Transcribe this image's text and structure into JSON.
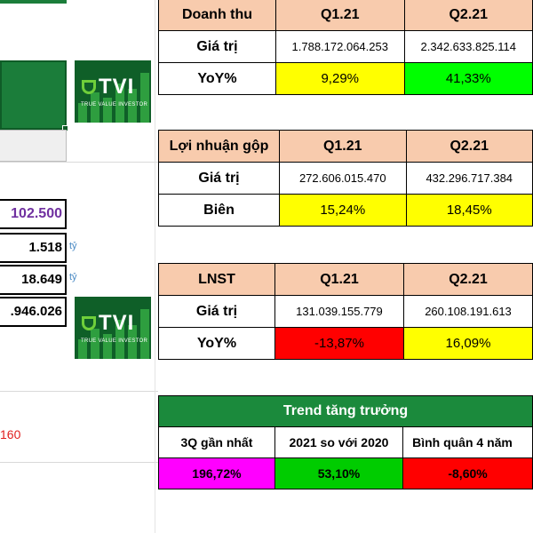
{
  "left": {
    "values": [
      "102.500",
      "1.518",
      "18.649",
      ".946.026"
    ],
    "units": [
      "tỷ",
      "tỷ"
    ],
    "red_number": "160"
  },
  "logo": {
    "text": "TVI",
    "tagline": "TRUE VALUE INVESTOR"
  },
  "revenue": {
    "header": [
      "Doanh thu",
      "Q1.21",
      "Q2.21"
    ],
    "rows": [
      {
        "label": "Giá trị",
        "q1": "1.788.172.064.253",
        "q2": "2.342.633.825.114"
      },
      {
        "label": "YoY%",
        "q1": "9,29%",
        "q2": "41,33%"
      }
    ]
  },
  "gross_profit": {
    "header": [
      "Lợi nhuận gộp",
      "Q1.21",
      "Q2.21"
    ],
    "rows": [
      {
        "label": "Giá trị",
        "q1": "272.606.015.470",
        "q2": "432.296.717.384"
      },
      {
        "label": "Biên",
        "q1": "15,24%",
        "q2": "18,45%"
      }
    ]
  },
  "net_profit": {
    "header": [
      "LNST",
      "Q1.21",
      "Q2.21"
    ],
    "rows": [
      {
        "label": "Giá trị",
        "q1": "131.039.155.779",
        "q2": "260.108.191.613"
      },
      {
        "label": "YoY%",
        "q1": "-13,87%",
        "q2": "16,09%"
      }
    ]
  },
  "trend": {
    "title": "Trend tăng trưởng",
    "headers": [
      "3Q gần nhất",
      "2021 so với 2020",
      "Bình quân 4 năm"
    ],
    "values": [
      "196,72%",
      "53,10%",
      "-8,60%"
    ]
  },
  "colors": {
    "header_peach": "#f8cbad",
    "yellow": "#ffff00",
    "lime": "#00ff00",
    "red": "#ff0000",
    "magenta": "#ff00ff",
    "trend_green": "#1b8a3c",
    "purple_text": "#7030a0"
  }
}
